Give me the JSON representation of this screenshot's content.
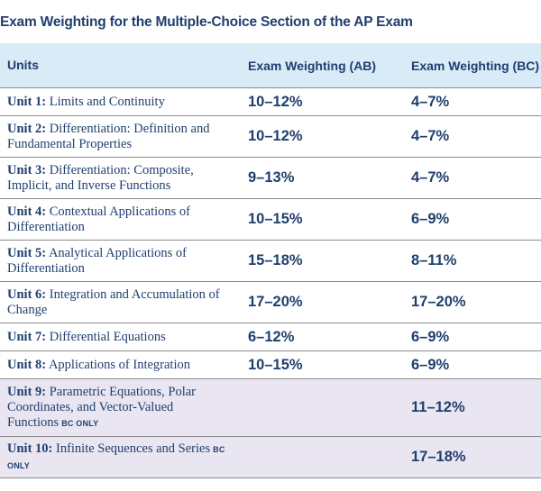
{
  "title": "Exam Weighting for the Multiple-Choice Section of the AP Exam",
  "headers": {
    "units": "Units",
    "ab": "Exam Weighting (AB)",
    "bc": "Exam Weighting (BC)"
  },
  "bc_only_label": "BC ONLY",
  "rows": [
    {
      "unit": "Unit 1:",
      "name": "Limits and Continuity",
      "ab": "10–12%",
      "bc": "4–7%"
    },
    {
      "unit": "Unit 2:",
      "name": "Differentiation: Definition and Fundamental Properties",
      "ab": "10–12%",
      "bc": "4–7%"
    },
    {
      "unit": "Unit 3:",
      "name": "Differentiation: Composite, Implicit, and Inverse Functions",
      "ab": "9–13%",
      "bc": "4–7%"
    },
    {
      "unit": "Unit 4:",
      "name": "Contextual Applications of Differentiation",
      "ab": "10–15%",
      "bc": "6–9%"
    },
    {
      "unit": "Unit 5:",
      "name": "Analytical Applications of Differentiation",
      "ab": "15–18%",
      "bc": "8–11%"
    },
    {
      "unit": "Unit 6:",
      "name": "Integration and Accumulation of Change",
      "ab": "17–20%",
      "bc": "17–20%"
    },
    {
      "unit": "Unit 7:",
      "name": "Differential Equations",
      "ab": "6–12%",
      "bc": "6–9%"
    },
    {
      "unit": "Unit 8:",
      "name": "Applications of Integration",
      "ab": "10–15%",
      "bc": "6–9%"
    },
    {
      "unit": "Unit 9:",
      "name": "Parametric Equations, Polar Coordinates, and Vector-Valued Functions",
      "ab": "",
      "bc": "11–12%"
    },
    {
      "unit": "Unit 10:",
      "name": "Infinite Sequences and Series",
      "ab": "",
      "bc": "17–18%"
    }
  ]
}
